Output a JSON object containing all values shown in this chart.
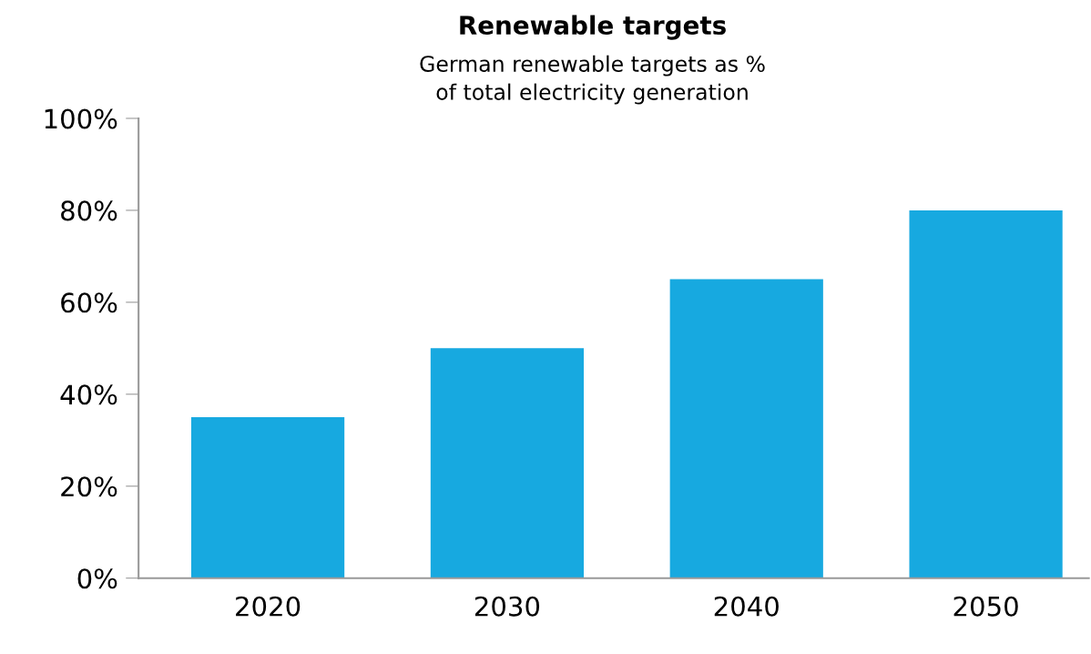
{
  "chart_data": {
    "type": "bar",
    "title": "Renewable targets",
    "subtitle": "German renewable targets as %\nof total electricity generation",
    "categories": [
      "2020",
      "2030",
      "2040",
      "2050"
    ],
    "values": [
      35,
      50,
      65,
      80
    ],
    "color": "#17a9e0",
    "ylim": [
      0,
      100
    ],
    "yticks": [
      {
        "value": 0,
        "label": "0%"
      },
      {
        "value": 20,
        "label": "20%"
      },
      {
        "value": 40,
        "label": "40%"
      },
      {
        "value": 60,
        "label": "60%"
      },
      {
        "value": 80,
        "label": "80%"
      },
      {
        "value": 100,
        "label": "100%"
      }
    ],
    "grid": false,
    "legend": false
  }
}
